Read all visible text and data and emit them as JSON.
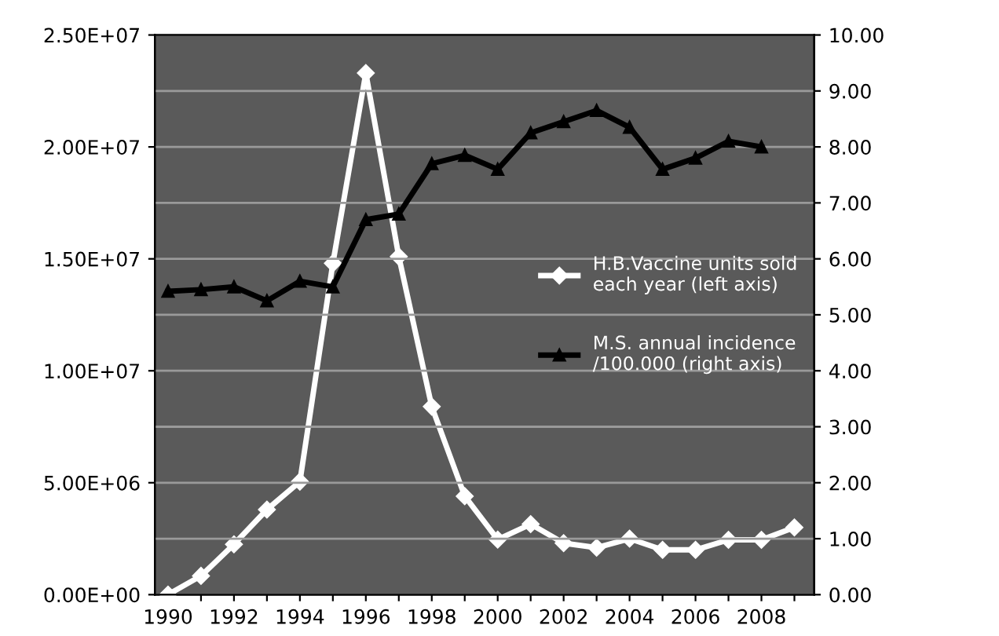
{
  "chart_data": {
    "type": "line",
    "x": [
      1990,
      1991,
      1992,
      1993,
      1994,
      1995,
      1996,
      1997,
      1998,
      1999,
      2000,
      2001,
      2002,
      2003,
      2004,
      2005,
      2006,
      2007,
      2008,
      2009
    ],
    "series": [
      {
        "name": "H.B.Vaccine units sold each year (left axis)",
        "color": "#ffffff",
        "marker": "diamond",
        "values": [
          0,
          840000,
          2250000,
          3800000,
          5050000,
          14800000,
          23300000,
          15100000,
          8400000,
          4400000,
          2460000,
          3150000,
          2300000,
          2100000,
          2500000,
          2000000,
          2000000,
          2450000,
          2450000,
          3000000
        ]
      },
      {
        "name": "M.S. annual incidence /100.000 (right axis)",
        "color": "#000000",
        "marker": "triangle",
        "axis": "y2",
        "x": [
          1990,
          1991,
          1992,
          1993,
          1994,
          1995,
          1996,
          1997,
          1998,
          1999,
          2000,
          2001,
          2002,
          2003,
          2004,
          2005,
          2006,
          2007,
          2008
        ],
        "values": [
          5.42,
          5.45,
          5.5,
          5.25,
          5.6,
          5.5,
          6.7,
          6.8,
          7.7,
          7.85,
          7.6,
          8.25,
          8.45,
          8.65,
          8.35,
          7.6,
          7.8,
          8.1,
          8.0
        ]
      }
    ],
    "xlim": [
      1989.6,
      2009.6
    ],
    "xticks": [
      1990,
      {
        "value": 1991,
        "label": null
      },
      1992,
      {
        "value": 1993,
        "label": null
      },
      1994,
      {
        "value": 1995,
        "label": null
      },
      1996,
      {
        "value": 1997,
        "label": null
      },
      1998,
      {
        "value": 1999,
        "label": null
      },
      2000,
      {
        "value": 2001,
        "label": null
      },
      2002,
      {
        "value": 2003,
        "label": null
      },
      2004,
      {
        "value": 2005,
        "label": null
      },
      2006,
      {
        "value": 2007,
        "label": null
      },
      2008,
      {
        "value": 2009,
        "label": null
      }
    ],
    "ylim": [
      0,
      25000000
    ],
    "yticks": [
      {
        "value": 0,
        "label": "0.00E+00"
      },
      {
        "value": 5000000,
        "label": "5.00E+06"
      },
      {
        "value": 10000000,
        "label": "1.00E+07"
      },
      {
        "value": 15000000,
        "label": "1.50E+07"
      },
      {
        "value": 20000000,
        "label": "2.00E+07"
      },
      {
        "value": 25000000,
        "label": "2.50E+07"
      }
    ],
    "y2lim": [
      0,
      10
    ],
    "y2ticks": [
      {
        "value": 0,
        "label": "0.00"
      },
      {
        "value": 1,
        "label": "1.00"
      },
      {
        "value": 2,
        "label": "2.00"
      },
      {
        "value": 3,
        "label": "3.00"
      },
      {
        "value": 4,
        "label": "4.00"
      },
      {
        "value": 5,
        "label": "5.00"
      },
      {
        "value": 6,
        "label": "6.00"
      },
      {
        "value": 7,
        "label": "7.00"
      },
      {
        "value": 8,
        "label": "8.00"
      },
      {
        "value": 9,
        "label": "9.00"
      },
      {
        "value": 10,
        "label": "10.00"
      }
    ],
    "grid": "y2",
    "legend": "right",
    "line_style": "solid"
  }
}
